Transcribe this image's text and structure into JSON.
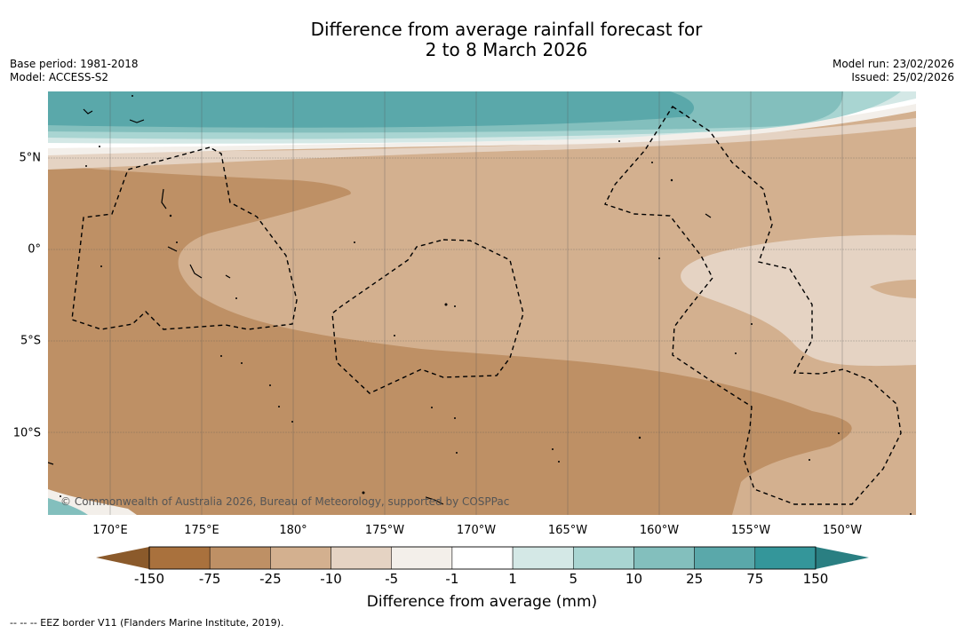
{
  "title": {
    "line1": "Difference from average rainfall forecast for",
    "line2": "2 to 8 March 2026"
  },
  "meta": {
    "base_period": "Base period: 1981-2018",
    "model": "Model: ACCESS-S2",
    "model_run": "Model run: 23/02/2026",
    "issued": "Issued: 25/02/2026"
  },
  "axes": {
    "longitudes": [
      "170°E",
      "175°E",
      "180°",
      "175°W",
      "170°W",
      "165°W",
      "160°W",
      "155°W",
      "150°W"
    ],
    "latitudes": [
      "5°N",
      "0°",
      "5°S",
      "10°S"
    ]
  },
  "copyright": "© Commonwealth of Australia 2026, Bureau of Meteorology, supported by COSPPac",
  "legend": {
    "ticks": [
      "-150",
      "-75",
      "-25",
      "-10",
      "-5",
      "-1",
      "1",
      "5",
      "10",
      "25",
      "75",
      "150"
    ],
    "colors": [
      "#a9713d",
      "#be9065",
      "#d3b08f",
      "#e5d3c3",
      "#f3efea",
      "#ffffff",
      "#d4e8e6",
      "#a9d5d2",
      "#83bfbd",
      "#5aa8aa",
      "#34969a"
    ],
    "under_color": "#8b5a2b",
    "over_color": "#2a7f82",
    "title": "Difference from average (mm)"
  },
  "footnote": "--  --  -- EEZ border V11 (Flanders Marine Institute, 2019)."
}
